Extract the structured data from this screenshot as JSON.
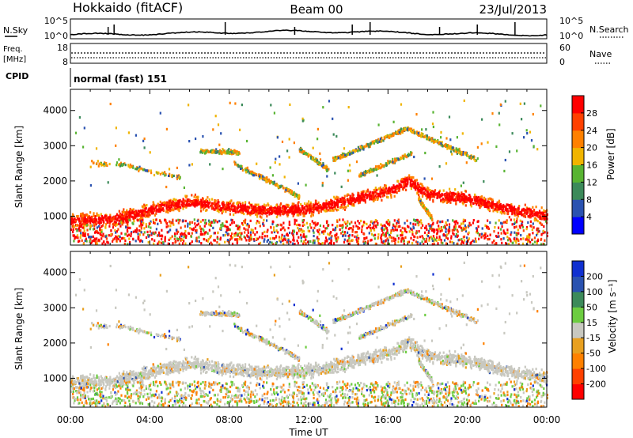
{
  "header": {
    "station": "Hokkaido (fitACF)",
    "beam": "Beam 00",
    "date": "23/Jul/2013"
  },
  "strips": {
    "nsky_label": "N.Sky",
    "nsky_ticks": [
      "10^5",
      "10^0"
    ],
    "nsearch_label": "N.Search",
    "nsearch_ticks": [
      "10^5",
      "10^0"
    ],
    "freq_label_1": "Freq.",
    "freq_label_2": "[MHz]",
    "freq_ticks": [
      "18",
      "8"
    ],
    "nave_label": "Nave",
    "nave_ticks": [
      "60",
      "0"
    ],
    "cpid_label": "CPID",
    "cpid_text": "normal (fast) 151"
  },
  "colors": {
    "power": [
      "#0000ff",
      "#2a52b0",
      "#3c8a5a",
      "#58b432",
      "#f0b400",
      "#ff8000",
      "#ff4000",
      "#ff0000"
    ],
    "velocity": [
      "#ff0000",
      "#ff4000",
      "#ff8000",
      "#e8a020",
      "#c8c8c0",
      "#6ccc40",
      "#3c8a5a",
      "#2a52b0",
      "#1030d0"
    ]
  },
  "chart_data": [
    {
      "type": "heatmap",
      "title": "",
      "xlabel": "",
      "ylabel": "Slant Range [km]",
      "xlim": [
        "00:00",
        "24:00"
      ],
      "ylim": [
        180,
        4600
      ],
      "y_ticks": [
        "1000",
        "2000",
        "3000",
        "4000"
      ],
      "colorbar_label": "Power [dB]",
      "colorbar_ticks": [
        "4",
        "8",
        "12",
        "16",
        "20",
        "24",
        "28"
      ],
      "colorbar_range": [
        0,
        32
      ],
      "main_band": {
        "hours": [
          0,
          2,
          4,
          5,
          6,
          8,
          10,
          12,
          14,
          16,
          17,
          18,
          20,
          22,
          24
        ],
        "range_km": [
          850,
          900,
          1150,
          1300,
          1400,
          1250,
          1150,
          1200,
          1450,
          1700,
          2000,
          1600,
          1500,
          1200,
          1000
        ],
        "typical_power_db": 26
      }
    },
    {
      "type": "heatmap",
      "title": "",
      "xlabel": "Time UT",
      "ylabel": "Slant Range [km]",
      "xlim": [
        "00:00",
        "24:00"
      ],
      "ylim": [
        180,
        4600
      ],
      "x_ticks": [
        "00:00",
        "04:00",
        "08:00",
        "12:00",
        "16:00",
        "20:00",
        "00:00"
      ],
      "y_ticks": [
        "1000",
        "2000",
        "3000",
        "4000"
      ],
      "colorbar_label": "Velocity [m s⁻¹]",
      "colorbar_ticks": [
        "200",
        "100",
        "50",
        "15",
        "-15",
        "-50",
        "-100",
        "-200"
      ],
      "colorbar_range": [
        -250,
        250
      ],
      "main_band": {
        "hours": [
          0,
          2,
          4,
          5,
          6,
          8,
          10,
          12,
          14,
          16,
          17,
          18,
          20,
          22,
          24
        ],
        "range_km": [
          850,
          900,
          1150,
          1300,
          1400,
          1250,
          1150,
          1200,
          1450,
          1700,
          2000,
          1600,
          1500,
          1200,
          1000
        ],
        "typical_velocity_ms": 0
      }
    }
  ]
}
